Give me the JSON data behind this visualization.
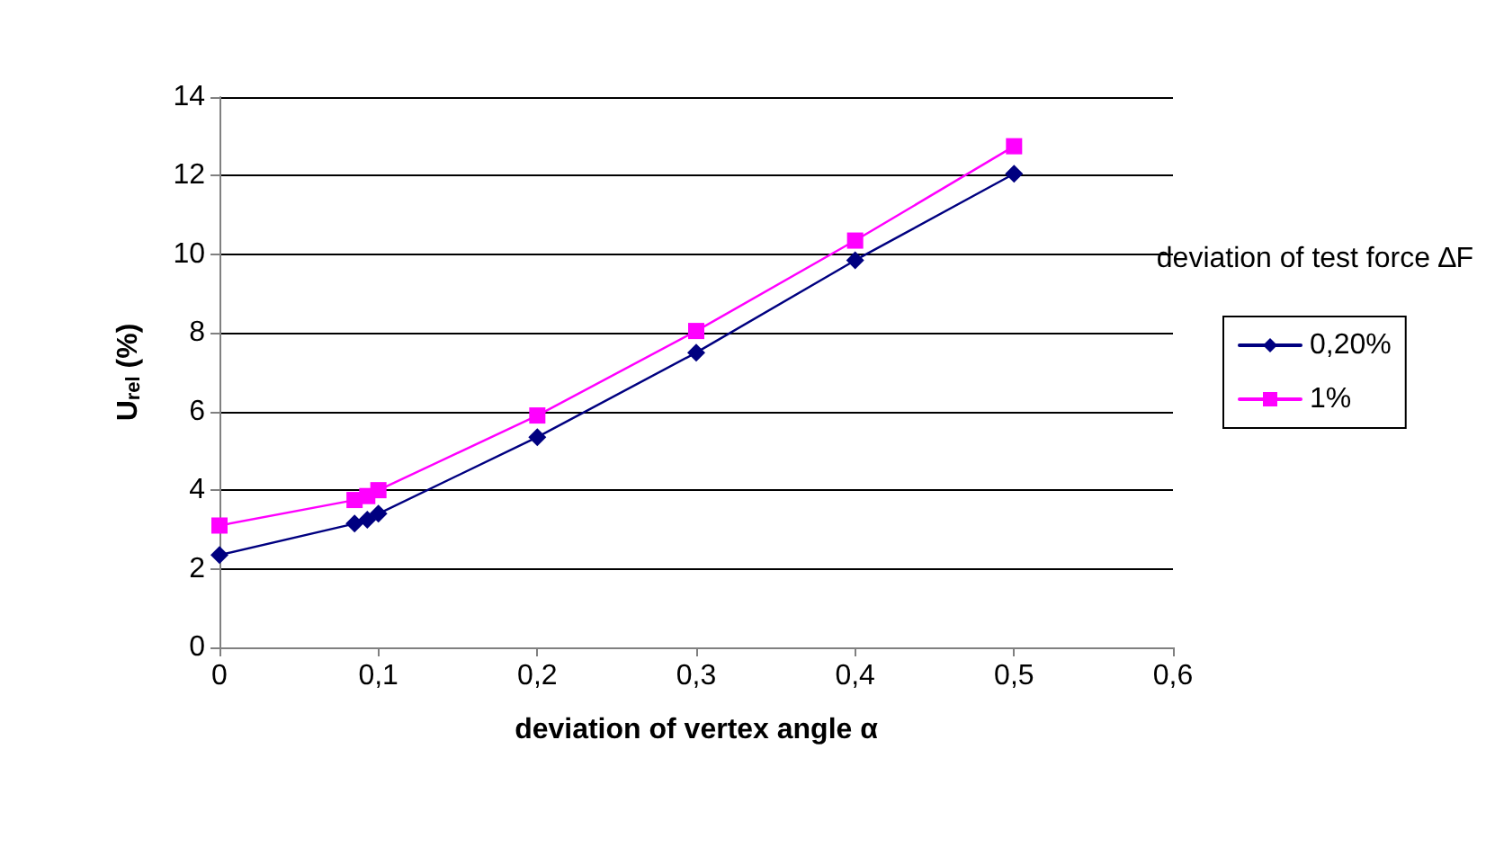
{
  "chart_data": {
    "type": "line",
    "xlabel": "deviation of vertex angle α",
    "ylabel": "U$_{rel}$ (%)",
    "legend_title": "deviation of test force ∆F",
    "legend": "right",
    "xlim": [
      0,
      0.6
    ],
    "xticks": [
      0,
      {
        "value": 0.1,
        "label": "0,1"
      },
      {
        "value": 0.2,
        "label": "0,2"
      },
      {
        "value": 0.3,
        "label": "0,3"
      },
      {
        "value": 0.4,
        "label": "0,4"
      },
      {
        "value": 0.5,
        "label": "0,5"
      },
      {
        "value": 0.6,
        "label": "0,6"
      }
    ],
    "ylim": [
      0,
      14
    ],
    "yticks": [
      0,
      2,
      4,
      6,
      8,
      10,
      12,
      14
    ],
    "grid": "y",
    "line_style": "solid",
    "series": [
      {
        "name": "0,20%",
        "color": "#000080",
        "marker": "diamond",
        "x": [
          0,
          0.085,
          0.093,
          0.1,
          0.2,
          0.3,
          0.4,
          0.5
        ],
        "values": [
          2.35,
          3.15,
          3.25,
          3.4,
          5.35,
          7.5,
          9.85,
          12.05
        ]
      },
      {
        "name": "1%",
        "color": "#ff00ff",
        "marker": "square",
        "x": [
          0,
          0.085,
          0.093,
          0.1,
          0.2,
          0.3,
          0.4,
          0.5
        ],
        "values": [
          3.1,
          3.75,
          3.85,
          4.0,
          5.9,
          8.05,
          10.35,
          12.75
        ]
      }
    ]
  }
}
